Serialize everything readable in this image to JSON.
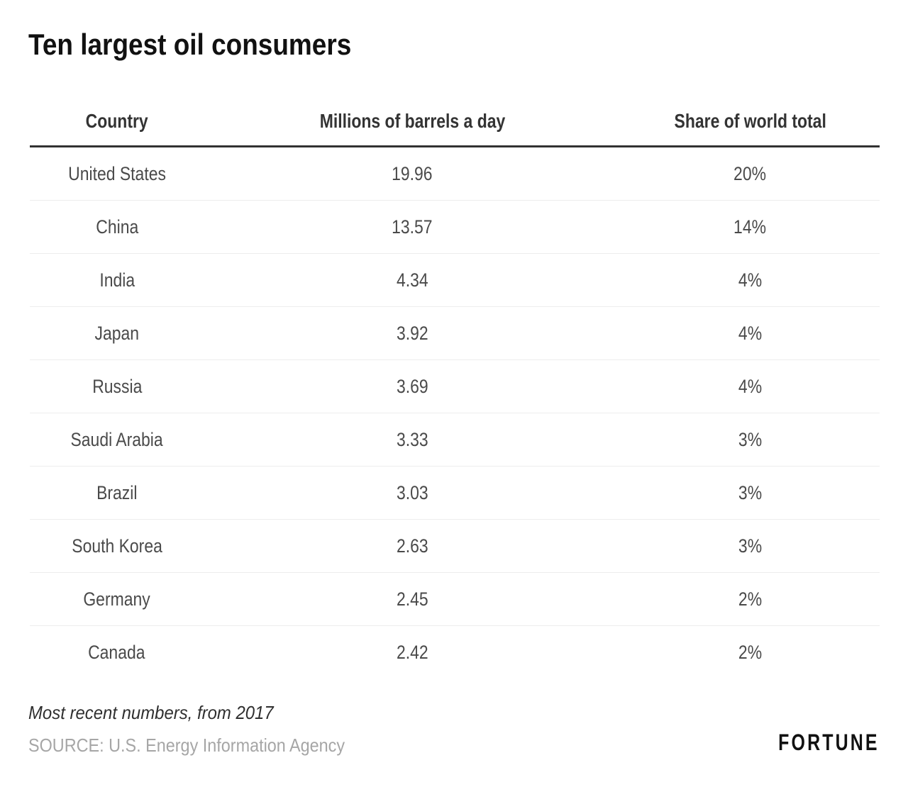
{
  "chart_data": {
    "type": "table",
    "title": "Ten largest oil consumers",
    "columns": [
      "Country",
      "Millions of barrels a day",
      "Share of world total"
    ],
    "rows": [
      [
        "United States",
        "19.96",
        "20%"
      ],
      [
        "China",
        "13.57",
        "14%"
      ],
      [
        "India",
        "4.34",
        "4%"
      ],
      [
        "Japan",
        "3.92",
        "4%"
      ],
      [
        "Russia",
        "3.69",
        "4%"
      ],
      [
        "Saudi Arabia",
        "3.33",
        "3%"
      ],
      [
        "Brazil",
        "3.03",
        "3%"
      ],
      [
        "South Korea",
        "2.63",
        "3%"
      ],
      [
        "Germany",
        "2.45",
        "2%"
      ],
      [
        "Canada",
        "2.42",
        "2%"
      ]
    ],
    "note": "Most recent numbers, from 2017",
    "source": "SOURCE: U.S. Energy Information Agency",
    "layout": "three-column centered table, thick rule under header, thin light dividers between rows"
  },
  "brand": {
    "logo_text": "FORTUNE"
  },
  "colors": {
    "background": "#ffffff",
    "title_text": "#111111",
    "header_text": "#333333",
    "cell_text": "#4a4a4a",
    "header_rule": "#323232",
    "row_divider": "#ededed",
    "note_text": "#2f2f2f",
    "source_text": "#a6a6a6",
    "brand_text": "#111111"
  }
}
